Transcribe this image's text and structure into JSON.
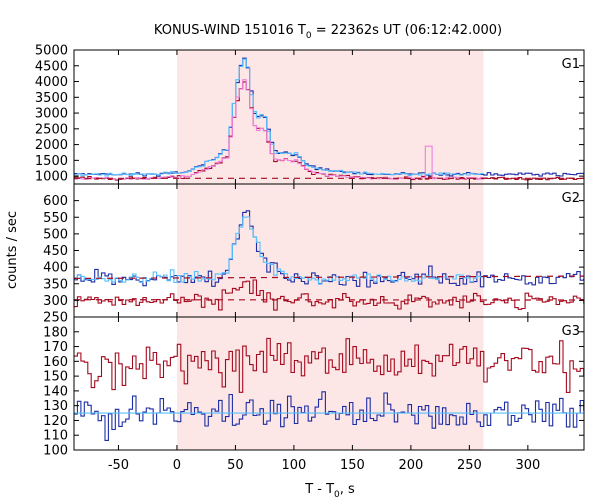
{
  "title": {
    "prefix": "KONUS-WIND 151016 T",
    "subscript": "0",
    "suffix": " = 22362s UT (06:12:42.000)"
  },
  "colors": {
    "shade": "#fde6e6",
    "dark_blue": "#1c2ea6",
    "light_blue": "#55bfff",
    "dark_red": "#a60a1e",
    "pink": "#ee7fdd",
    "frame": "#000000"
  },
  "chart_data": {
    "type": "line",
    "x_axis": {
      "label_main": "T - T",
      "label_sub": "0",
      "label_suffix": ", s",
      "range": [
        -88,
        348
      ],
      "ticks": [
        -50,
        0,
        50,
        100,
        150,
        200,
        250,
        300
      ],
      "tick_labels": [
        "-50",
        "0",
        "50",
        "100",
        "150",
        "200",
        "250",
        "300"
      ]
    },
    "y_axis_label": "counts / sec",
    "shaded_interval": [
      0,
      262
    ],
    "panels": [
      {
        "name": "G1",
        "ylim": [
          750,
          5000
        ],
        "ticks": [
          1000,
          1500,
          2000,
          2500,
          3000,
          3500,
          4000,
          4500,
          5000
        ],
        "tick_labels": [
          "1000",
          "1500",
          "2000",
          "2500",
          "3000",
          "3500",
          "4000",
          "4500",
          "5000"
        ],
        "background_fit": [
          {
            "color": "dark_red",
            "dash": true,
            "x0": -88,
            "y0": 930,
            "x1": 348,
            "y1": 930
          }
        ],
        "series": [
          {
            "color": "dark_blue",
            "binsize": 2.944,
            "base": 1060,
            "noise": 25,
            "shape": "g1_total",
            "scale": 1.0,
            "seed": 11
          },
          {
            "color": "light_blue",
            "binsize": 2.944,
            "base": 1060,
            "noise": 20,
            "shape": "g1_total",
            "scale": 1.0,
            "seed": 12,
            "xlim": [
              -88,
              262
            ]
          },
          {
            "color": "dark_red",
            "binsize": 2.944,
            "base": 930,
            "noise": 25,
            "shape": "g1_soft",
            "scale": 1.0,
            "seed": 13
          },
          {
            "color": "pink",
            "binsize": 2.944,
            "base": 930,
            "noise": 20,
            "shape": "g1_soft",
            "scale": 1.0,
            "seed": 14,
            "xlim": [
              -88,
              262
            ],
            "spike": {
              "x": 214,
              "width": 3,
              "value": 1950
            }
          }
        ]
      },
      {
        "name": "G2",
        "ylim": [
          250,
          650
        ],
        "ticks": [
          250,
          300,
          350,
          400,
          450,
          500,
          550,
          600
        ],
        "tick_labels": [
          "250",
          "300",
          "350",
          "400",
          "450",
          "500",
          "550",
          "600"
        ],
        "background_fit": [
          {
            "color": "dark_red",
            "dash": true,
            "x0": -88,
            "y0": 366,
            "x1": 348,
            "y1": 373
          },
          {
            "color": "dark_red",
            "dash": true,
            "x0": -88,
            "y0": 302,
            "x1": 348,
            "y1": 301
          }
        ],
        "series": [
          {
            "color": "dark_blue",
            "binsize": 2.944,
            "base": 367,
            "noise": 12,
            "shape": "g2_blue",
            "scale": 1.0,
            "seed": 21
          },
          {
            "color": "light_blue",
            "binsize": 2.944,
            "base": 367,
            "noise": 8,
            "shape": "g2_blue",
            "scale": 1.0,
            "seed": 22,
            "xlim": [
              -88,
              262
            ]
          },
          {
            "color": "dark_red",
            "binsize": 2.944,
            "base": 300,
            "noise": 11,
            "shape": "g2_red",
            "scale": 1.0,
            "seed": 23
          }
        ]
      },
      {
        "name": "G3",
        "ylim": [
          100,
          190
        ],
        "ticks": [
          100,
          110,
          120,
          130,
          140,
          150,
          160,
          170,
          180
        ],
        "tick_labels": [
          "100",
          "110",
          "120",
          "130",
          "140",
          "150",
          "160",
          "170",
          "180"
        ],
        "background_fit": [
          {
            "color": "light_blue",
            "dash": false,
            "x0": -88,
            "y0": 125,
            "x1": 348,
            "y1": 125
          }
        ],
        "series": [
          {
            "color": "dark_red",
            "binsize": 2.944,
            "base": 160,
            "noise": 7,
            "shape": "flat",
            "scale": 1.0,
            "seed": 31
          },
          {
            "color": "dark_blue",
            "binsize": 2.944,
            "base": 125,
            "noise": 6,
            "shape": "flat",
            "scale": 1.0,
            "seed": 32
          }
        ]
      }
    ]
  }
}
